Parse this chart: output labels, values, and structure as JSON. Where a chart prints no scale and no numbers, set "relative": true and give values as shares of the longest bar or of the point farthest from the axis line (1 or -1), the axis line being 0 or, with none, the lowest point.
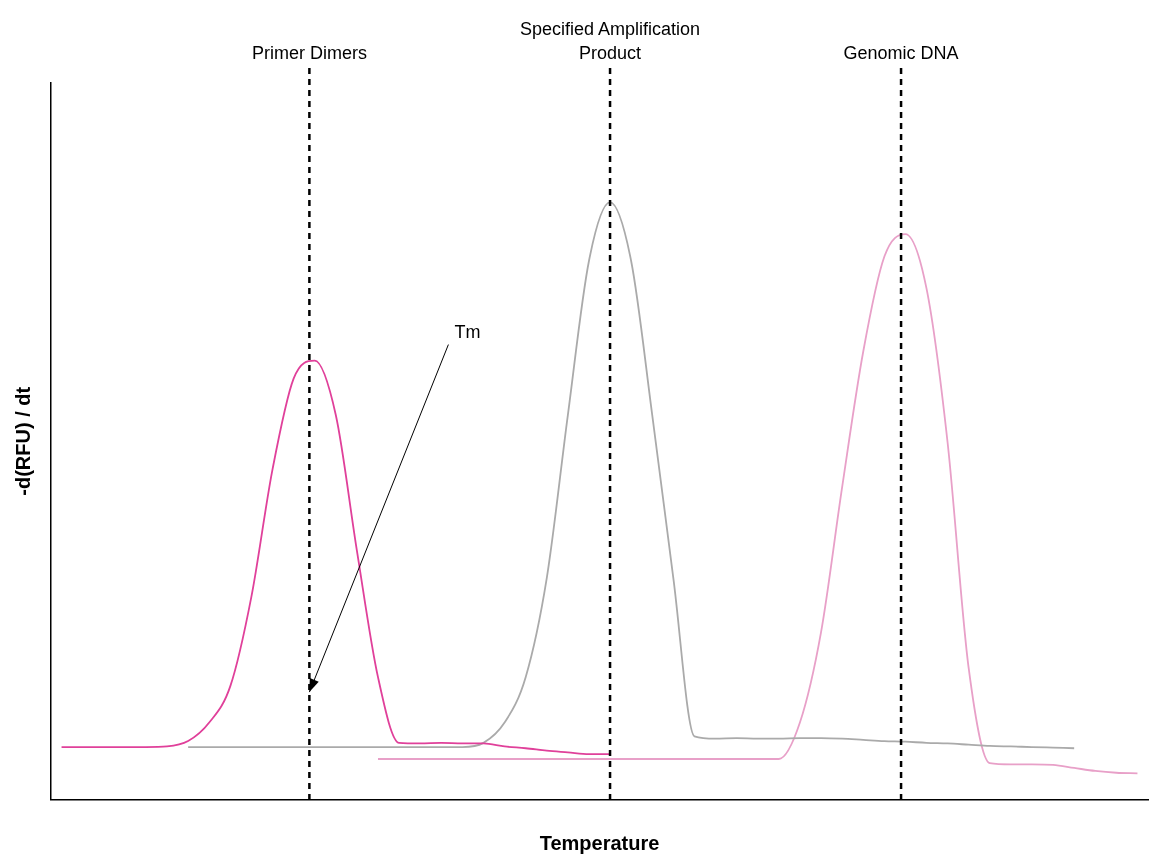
{
  "chart_data": {
    "type": "line",
    "relative": true,
    "xlabel": "Temperature",
    "ylabel": "-d(RFU) / dt",
    "categories": [
      null,
      null,
      null,
      null,
      null,
      null,
      null,
      null,
      null,
      null,
      null,
      null,
      null,
      null,
      null,
      null,
      null,
      null,
      null,
      null,
      null,
      null,
      null,
      null,
      null,
      null,
      null,
      null,
      null,
      null,
      null,
      null,
      null,
      null,
      null,
      null,
      null,
      null,
      null,
      null,
      null,
      null,
      null,
      null,
      null,
      null,
      null,
      null,
      null,
      null,
      null,
      null
    ],
    "series": [
      {
        "color": "#e0409a",
        "values": [
          0.088,
          0.088,
          0.088,
          0.088,
          0.088,
          0.089,
          0.098,
          0.129,
          0.19,
          0.34,
          0.553,
          0.705,
          0.735,
          0.644,
          0.417,
          0.205,
          0.095,
          0.094,
          0.095,
          0.094,
          0.094,
          0.089,
          0.086,
          0.082,
          0.079,
          0.076,
          0.076,
          null,
          null,
          null,
          null,
          null,
          null,
          null,
          null,
          null,
          null,
          null,
          null,
          null,
          null,
          null,
          null,
          null,
          null,
          null,
          null,
          null,
          null,
          null,
          null,
          null
        ]
      },
      {
        "color": "#aaaaaa",
        "values": [
          null,
          null,
          null,
          null,
          null,
          null,
          0.088,
          0.088,
          0.088,
          0.088,
          0.088,
          0.088,
          0.088,
          0.088,
          0.088,
          0.088,
          0.088,
          0.088,
          0.088,
          0.088,
          0.095,
          0.129,
          0.205,
          0.371,
          0.644,
          0.902,
          1,
          0.902,
          0.644,
          0.371,
          0.106,
          0.102,
          0.103,
          0.102,
          0.102,
          0.103,
          0.103,
          0.102,
          0.1,
          0.098,
          0.097,
          0.095,
          0.094,
          0.092,
          0.09,
          0.089,
          0.088,
          0.087,
          0.086,
          null,
          null,
          null
        ]
      },
      {
        "color": "#e8a0c8",
        "values": [
          null,
          null,
          null,
          null,
          null,
          null,
          null,
          null,
          null,
          null,
          null,
          null,
          null,
          null,
          null,
          0.068,
          0.068,
          0.068,
          0.068,
          0.068,
          0.068,
          0.068,
          0.068,
          0.068,
          0.068,
          0.068,
          0.068,
          0.068,
          0.068,
          0.068,
          0.068,
          0.068,
          0.068,
          0.068,
          0.068,
          0.129,
          0.28,
          0.523,
          0.75,
          0.909,
          0.947,
          0.856,
          0.598,
          0.22,
          0.061,
          0.059,
          0.059,
          0.058,
          0.053,
          0.048,
          0.045,
          0.044
        ]
      }
    ],
    "annotations": [
      "Primer Dimers",
      "Specified Amplification Product",
      "Genomic DNA",
      "Tm"
    ],
    "grid": false,
    "legend": false,
    "marker": "none",
    "line_style": "solid"
  }
}
